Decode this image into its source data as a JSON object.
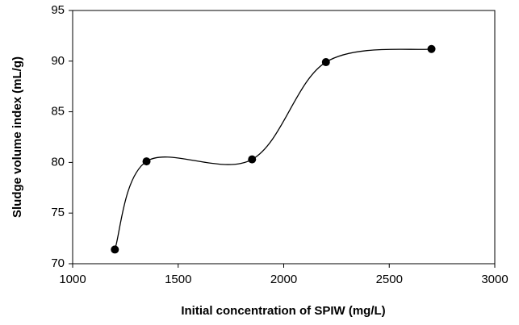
{
  "chart_data": {
    "type": "line",
    "smooth": true,
    "markers": true,
    "x_label": "Initial concentration of SPIW (mg/L)",
    "y_label": "Sludge volume  index (mL/g)",
    "x": [
      1200,
      1350,
      1850,
      2200,
      2700
    ],
    "values": [
      71.4,
      80.1,
      80.3,
      89.9,
      91.2
    ],
    "color": "#000000",
    "xlim": [
      1000,
      3000
    ],
    "xticks": [
      1000,
      1500,
      2000,
      2500,
      3000
    ],
    "ylim": [
      70,
      95
    ],
    "yticks": [
      70,
      75,
      80,
      85,
      90,
      95
    ],
    "grid": false
  }
}
